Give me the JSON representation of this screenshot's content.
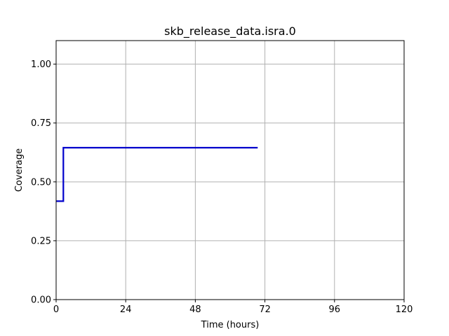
{
  "chart_data": {
    "type": "line",
    "title": "skb_release_data.isra.0",
    "xlabel": "Time (hours)",
    "ylabel": "Coverage",
    "xlim": [
      0,
      120
    ],
    "ylim": [
      0,
      1.1
    ],
    "xticks": [
      0,
      24,
      48,
      72,
      96,
      120
    ],
    "yticks": [
      0.0,
      0.25,
      0.5,
      0.75,
      1.0
    ],
    "xtick_labels": [
      "0",
      "24",
      "48",
      "72",
      "96",
      "120"
    ],
    "ytick_labels": [
      "0.00",
      "0.25",
      "0.50",
      "0.75",
      "1.00"
    ],
    "grid": true,
    "series": [
      {
        "color": "#0000cc",
        "step": true,
        "x": [
          0,
          2.5,
          2.5,
          69.5
        ],
        "y": [
          0.418,
          0.418,
          0.645,
          0.645
        ]
      }
    ]
  }
}
